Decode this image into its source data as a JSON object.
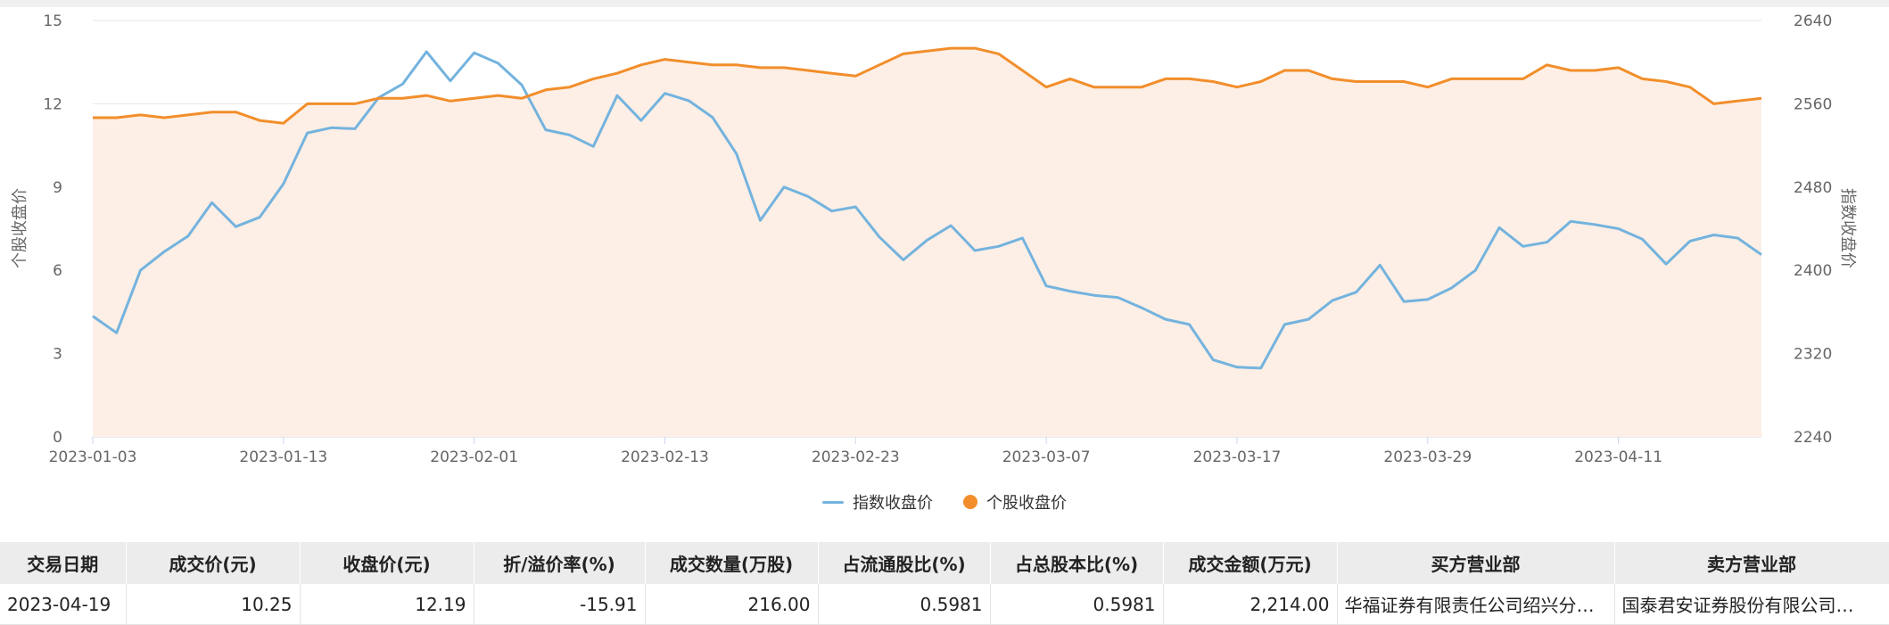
{
  "chart_data": {
    "type": "line",
    "x": [
      "2023-01-03",
      "2023-01-04",
      "2023-01-05",
      "2023-01-06",
      "2023-01-09",
      "2023-01-10",
      "2023-01-11",
      "2023-01-12",
      "2023-01-13",
      "2023-01-16",
      "2023-01-17",
      "2023-01-18",
      "2023-01-19",
      "2023-01-20",
      "2023-01-30",
      "2023-01-31",
      "2023-02-01",
      "2023-02-02",
      "2023-02-03",
      "2023-02-06",
      "2023-02-07",
      "2023-02-08",
      "2023-02-09",
      "2023-02-10",
      "2023-02-13",
      "2023-02-14",
      "2023-02-15",
      "2023-02-16",
      "2023-02-17",
      "2023-02-20",
      "2023-02-21",
      "2023-02-22",
      "2023-02-23",
      "2023-02-24",
      "2023-02-27",
      "2023-02-28",
      "2023-03-01",
      "2023-03-02",
      "2023-03-03",
      "2023-03-06",
      "2023-03-07",
      "2023-03-08",
      "2023-03-09",
      "2023-03-10",
      "2023-03-13",
      "2023-03-14",
      "2023-03-15",
      "2023-03-16",
      "2023-03-17",
      "2023-03-20",
      "2023-03-21",
      "2023-03-22",
      "2023-03-23",
      "2023-03-24",
      "2023-03-27",
      "2023-03-28",
      "2023-03-29",
      "2023-03-30",
      "2023-03-31",
      "2023-04-03",
      "2023-04-04",
      "2023-04-06",
      "2023-04-07",
      "2023-04-10",
      "2023-04-11",
      "2023-04-12",
      "2023-04-13",
      "2023-04-14",
      "2023-04-17",
      "2023-04-18",
      "2023-04-19"
    ],
    "x_tick_labels": [
      "2023-01-03",
      "2023-01-13",
      "2023-02-01",
      "2023-02-13",
      "2023-02-23",
      "2023-03-07",
      "2023-03-17",
      "2023-03-29",
      "2023-04-11"
    ],
    "series": [
      {
        "name": "指数收盘价",
        "axis": "right",
        "color": "#74b3de",
        "values": [
          2356,
          2340,
          2400,
          2418,
          2433,
          2465,
          2442,
          2451,
          2483,
          2532,
          2537,
          2536,
          2566,
          2579,
          2610,
          2582,
          2609,
          2599,
          2578,
          2535,
          2530,
          2519,
          2568,
          2544,
          2570,
          2563,
          2547,
          2512,
          2448,
          2480,
          2471,
          2457,
          2461,
          2432,
          2410,
          2429,
          2443,
          2419,
          2423,
          2431,
          2385,
          2380,
          2376,
          2374,
          2364,
          2353,
          2348,
          2314,
          2307,
          2306,
          2348,
          2353,
          2371,
          2379,
          2405,
          2370,
          2372,
          2383,
          2400,
          2441,
          2423,
          2427,
          2447,
          2444,
          2440,
          2430,
          2406,
          2428,
          2434,
          2431,
          2415
        ]
      },
      {
        "name": "个股收盘价",
        "axis": "left",
        "color": "#f28e2b",
        "values": [
          11.5,
          11.5,
          11.6,
          11.5,
          11.6,
          11.7,
          11.7,
          11.4,
          11.3,
          12.0,
          12.0,
          12.0,
          12.2,
          12.2,
          12.3,
          12.1,
          12.2,
          12.3,
          12.2,
          12.5,
          12.6,
          12.9,
          13.1,
          13.4,
          13.6,
          13.5,
          13.4,
          13.4,
          13.3,
          13.3,
          13.2,
          13.1,
          13.0,
          13.4,
          13.8,
          13.9,
          14.0,
          14.0,
          13.8,
          13.2,
          12.6,
          12.9,
          12.6,
          12.6,
          12.6,
          12.9,
          12.9,
          12.8,
          12.6,
          12.8,
          13.2,
          13.2,
          12.9,
          12.8,
          12.8,
          12.8,
          12.6,
          12.9,
          12.9,
          12.9,
          12.9,
          13.4,
          13.2,
          13.2,
          13.3,
          12.9,
          12.8,
          12.6,
          12.0,
          12.1,
          12.2
        ]
      }
    ],
    "y_left": {
      "label": "个股收盘价",
      "min": 0,
      "max": 15,
      "ticks": [
        0,
        3,
        6,
        9,
        12,
        15
      ]
    },
    "y_right": {
      "label": "指数收盘价",
      "min": 2240,
      "max": 2640,
      "ticks": [
        2240,
        2320,
        2400,
        2480,
        2560,
        2640
      ]
    },
    "area_fill_series": "个股收盘价",
    "area_color": "#fdefe6",
    "grid": true,
    "legend_position": "bottom-center"
  },
  "table": {
    "headers": [
      "交易日期",
      "成交价(元)",
      "收盘价(元)",
      "折/溢价率(%)",
      "成交数量(万股)",
      "占流通股比(%)",
      "占总股本比(%)",
      "成交金额(万元)",
      "买方营业部",
      "卖方营业部"
    ],
    "rows": [
      [
        "2023-04-19",
        "10.25",
        "12.19",
        "-15.91",
        "216.00",
        "0.5981",
        "0.5981",
        "2,214.00",
        "华福证券有限责任公司绍兴分…",
        "国泰君安证券股份有限公司…"
      ]
    ]
  }
}
